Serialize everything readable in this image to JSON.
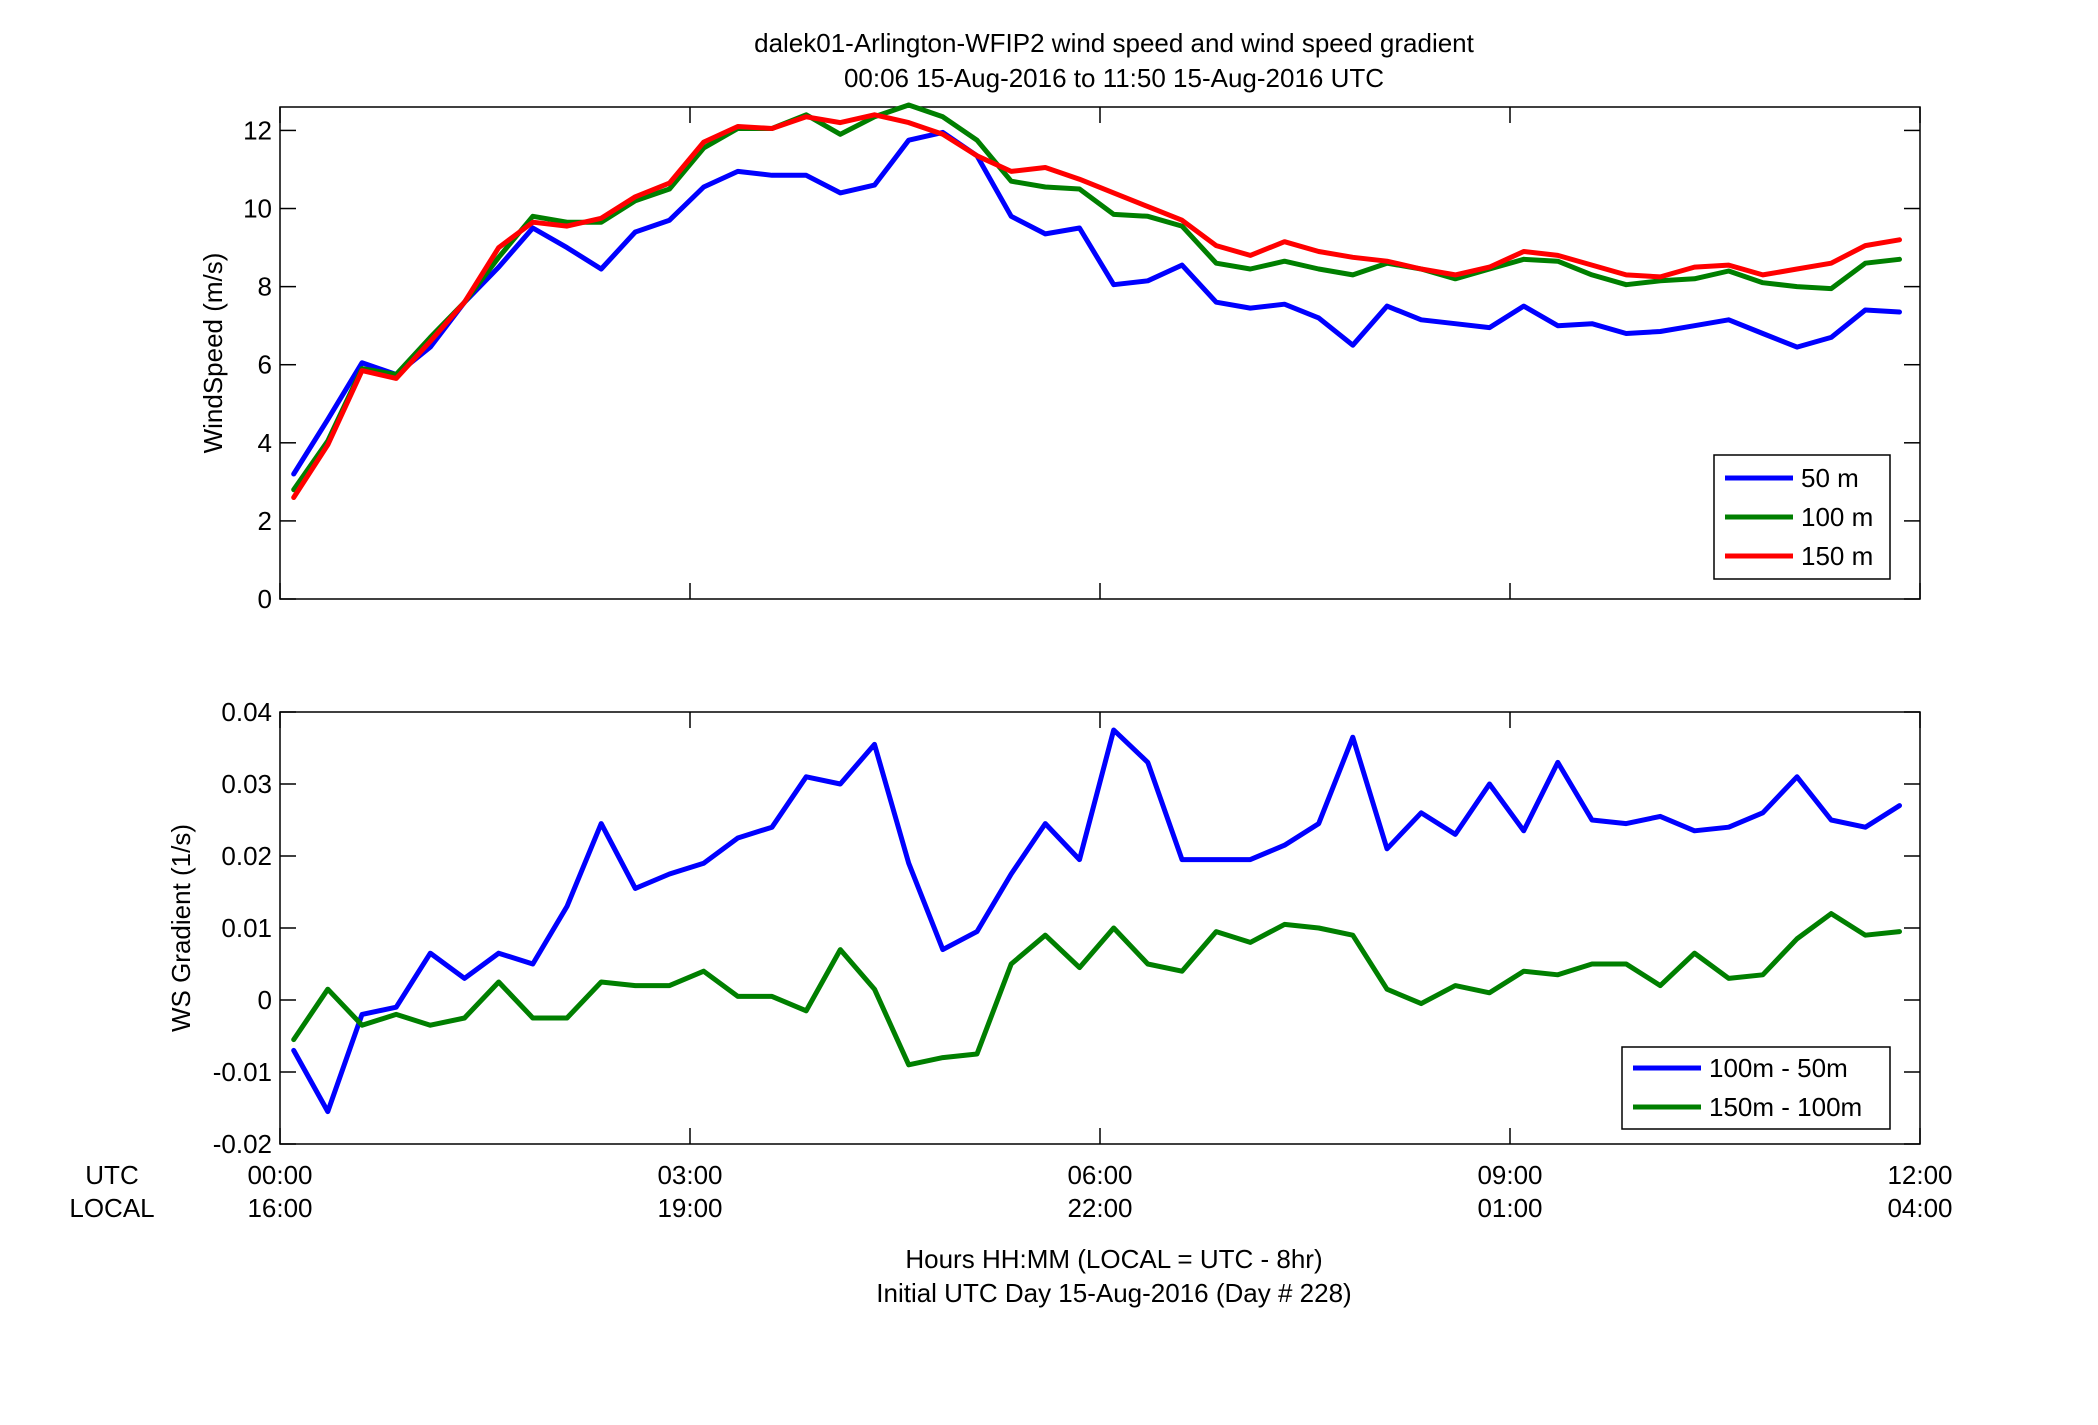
{
  "chart_data": [
    {
      "type": "line",
      "title": "dalek01-Arlington-WFIP2  wind speed and wind speed gradient",
      "subtitle": "00:06 15-Aug-2016 to 11:50 15-Aug-2016  UTC",
      "xlabel": "",
      "ylabel": "WindSpeed (m/s)",
      "xlim": [
        0,
        12
      ],
      "ylim": [
        0,
        12.6
      ],
      "yticks": [
        0,
        2,
        4,
        6,
        8,
        10,
        12
      ],
      "grid": false,
      "legend_position": "bottom-right",
      "x": [
        0.1,
        0.35,
        0.6,
        0.85,
        1.1,
        1.35,
        1.6,
        1.85,
        2.1,
        2.35,
        2.6,
        2.85,
        3.1,
        3.35,
        3.6,
        3.85,
        4.1,
        4.35,
        4.6,
        4.85,
        5.1,
        5.35,
        5.6,
        5.85,
        6.1,
        6.35,
        6.6,
        6.85,
        7.1,
        7.35,
        7.6,
        7.85,
        8.1,
        8.35,
        8.6,
        8.85,
        9.1,
        9.35,
        9.6,
        9.85,
        10.1,
        10.35,
        10.6,
        10.85,
        11.1,
        11.35,
        11.6,
        11.85
      ],
      "series": [
        {
          "name": "50 m",
          "color": "#0000ff",
          "values": [
            3.2,
            4.6,
            6.05,
            5.75,
            6.45,
            7.6,
            8.5,
            9.5,
            9.0,
            8.45,
            9.4,
            9.7,
            10.55,
            10.95,
            10.85,
            10.85,
            10.4,
            10.6,
            11.75,
            11.95,
            11.35,
            9.8,
            9.35,
            9.5,
            8.05,
            8.15,
            8.55,
            7.6,
            7.45,
            7.55,
            7.2,
            6.5,
            7.5,
            7.15,
            7.05,
            6.95,
            7.5,
            7.0,
            7.05,
            6.8,
            6.85,
            7.0,
            7.15,
            6.8,
            6.45,
            6.7,
            7.4,
            7.35
          ]
        },
        {
          "name": "100 m",
          "color": "#007f00",
          "values": [
            2.8,
            4.05,
            5.9,
            5.75,
            6.7,
            7.6,
            8.75,
            9.8,
            9.65,
            9.65,
            10.2,
            10.5,
            11.55,
            12.05,
            12.05,
            12.4,
            11.9,
            12.35,
            12.65,
            12.35,
            11.75,
            10.7,
            10.55,
            10.5,
            9.85,
            9.8,
            9.55,
            8.6,
            8.45,
            8.65,
            8.45,
            8.3,
            8.6,
            8.45,
            8.2,
            8.45,
            8.7,
            8.65,
            8.3,
            8.05,
            8.15,
            8.2,
            8.4,
            8.1,
            8.0,
            7.95,
            8.6,
            8.7
          ]
        },
        {
          "name": "150 m",
          "color": "#ff0000",
          "values": [
            2.6,
            3.95,
            5.85,
            5.65,
            6.6,
            7.6,
            9.0,
            9.65,
            9.55,
            9.75,
            10.3,
            10.65,
            11.7,
            12.1,
            12.05,
            12.35,
            12.2,
            12.4,
            12.2,
            11.9,
            11.35,
            10.95,
            11.05,
            10.75,
            10.4,
            10.05,
            9.7,
            9.05,
            8.8,
            9.15,
            8.9,
            8.75,
            8.65,
            8.45,
            8.3,
            8.5,
            8.9,
            8.8,
            8.55,
            8.3,
            8.25,
            8.5,
            8.55,
            8.3,
            8.45,
            8.6,
            9.05,
            9.2
          ]
        }
      ]
    },
    {
      "type": "line",
      "xlabel": "Hours HH:MM  (LOCAL = UTC - 8hr)",
      "xlabel2": "Initial UTC Day 15-Aug-2016 (Day # 228)",
      "ylabel": "WS Gradient (1/s)",
      "xlim": [
        0,
        12
      ],
      "ylim": [
        -0.02,
        0.04
      ],
      "yticks": [
        -0.02,
        -0.01,
        0,
        0.01,
        0.02,
        0.03,
        0.04
      ],
      "ytick_labels": [
        "-0.02",
        "-0.01",
        "0",
        "0.01",
        "0.02",
        "0.03",
        "0.04"
      ],
      "xticks": [
        0,
        3,
        6,
        9,
        12
      ],
      "row_labels": [
        "UTC",
        "LOCAL"
      ],
      "xtick_labels_utc": [
        "00:00",
        "03:00",
        "06:00",
        "09:00",
        "12:00"
      ],
      "xtick_labels_local": [
        "16:00",
        "19:00",
        "22:00",
        "01:00",
        "04:00"
      ],
      "grid": false,
      "legend_position": "bottom-right",
      "x": [
        0.1,
        0.35,
        0.6,
        0.85,
        1.1,
        1.35,
        1.6,
        1.85,
        2.1,
        2.35,
        2.6,
        2.85,
        3.1,
        3.35,
        3.6,
        3.85,
        4.1,
        4.35,
        4.6,
        4.85,
        5.1,
        5.35,
        5.6,
        5.85,
        6.1,
        6.35,
        6.6,
        6.85,
        7.1,
        7.35,
        7.6,
        7.85,
        8.1,
        8.35,
        8.6,
        8.85,
        9.1,
        9.35,
        9.6,
        9.85,
        10.1,
        10.35,
        10.6,
        10.85,
        11.1,
        11.35,
        11.6,
        11.85
      ],
      "series": [
        {
          "name": "100m - 50m",
          "color": "#0000ff",
          "values": [
            -0.007,
            -0.0155,
            -0.002,
            -0.001,
            0.0065,
            0.003,
            0.0065,
            0.005,
            0.013,
            0.0245,
            0.0155,
            0.0175,
            0.019,
            0.0225,
            0.024,
            0.031,
            0.03,
            0.0355,
            0.019,
            0.007,
            0.0095,
            0.0175,
            0.0245,
            0.0195,
            0.0375,
            0.033,
            0.0195,
            0.0195,
            0.0195,
            0.0215,
            0.0245,
            0.0365,
            0.021,
            0.026,
            0.023,
            0.03,
            0.0235,
            0.033,
            0.025,
            0.0245,
            0.0255,
            0.0235,
            0.024,
            0.026,
            0.031,
            0.025,
            0.024,
            0.027
          ]
        },
        {
          "name": "150m - 100m",
          "color": "#007f00",
          "values": [
            -0.0055,
            0.0015,
            -0.0035,
            -0.002,
            -0.0035,
            -0.0025,
            0.0025,
            -0.0025,
            -0.0025,
            0.0025,
            0.002,
            0.002,
            0.004,
            0.0005,
            0.0005,
            -0.0015,
            0.007,
            0.0015,
            -0.009,
            -0.008,
            -0.0075,
            0.005,
            0.009,
            0.0045,
            0.01,
            0.005,
            0.004,
            0.0095,
            0.008,
            0.0105,
            0.01,
            0.009,
            0.0015,
            -0.0005,
            0.002,
            0.001,
            0.004,
            0.0035,
            0.005,
            0.005,
            0.002,
            0.0065,
            0.003,
            0.0035,
            0.0085,
            0.012,
            0.009,
            0.0095
          ]
        }
      ]
    }
  ]
}
